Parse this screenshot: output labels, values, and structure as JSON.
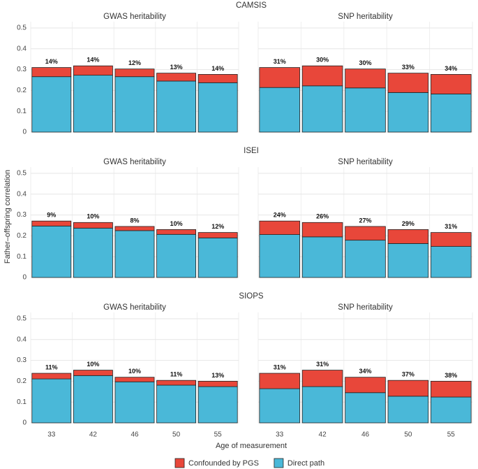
{
  "ylabel": "Father–offspring correlation",
  "xlabel": "Age of measurement",
  "chart_data": [
    {
      "type": "bar",
      "stacked": true,
      "section": "CAMSIS",
      "title": "GWAS heritability",
      "series": [
        {
          "name": "Direct path",
          "color": "#4ab8d8",
          "values": [
            0.266,
            0.273,
            0.266,
            0.245,
            0.237
          ]
        },
        {
          "name": "Confounded by PGS",
          "color": "#e8473a",
          "values": [
            0.044,
            0.045,
            0.037,
            0.038,
            0.04
          ]
        }
      ],
      "annotations": [
        "14%",
        "14%",
        "12%",
        "13%",
        "14%"
      ],
      "ylim": [
        0,
        0.53
      ],
      "yticks": [
        0,
        0.1,
        0.2,
        0.3,
        0.4,
        0.5
      ],
      "grid": true
    },
    {
      "type": "bar",
      "stacked": true,
      "title": "SNP heritability",
      "series": [
        {
          "values": [
            0.214,
            0.222,
            0.212,
            0.19,
            0.183
          ]
        },
        {
          "values": [
            0.096,
            0.096,
            0.091,
            0.093,
            0.094
          ]
        }
      ],
      "annotations": [
        "31%",
        "30%",
        "30%",
        "33%",
        "34%"
      ],
      "ylim": [
        0,
        0.53
      ],
      "yticks": [
        0,
        0.1,
        0.2,
        0.3,
        0.4,
        0.5
      ],
      "grid": true
    },
    {
      "type": "bar",
      "stacked": true,
      "section": "ISEI",
      "title": "GWAS heritability",
      "series": [
        {
          "values": [
            0.247,
            0.237,
            0.225,
            0.207,
            0.19
          ]
        },
        {
          "values": [
            0.024,
            0.027,
            0.02,
            0.023,
            0.026
          ]
        }
      ],
      "annotations": [
        "9%",
        "10%",
        "8%",
        "10%",
        "12%"
      ],
      "ylim": [
        0,
        0.53
      ],
      "yticks": [
        0,
        0.1,
        0.2,
        0.3,
        0.4,
        0.5
      ],
      "grid": true
    },
    {
      "type": "bar",
      "stacked": true,
      "title": "SNP heritability",
      "series": [
        {
          "values": [
            0.206,
            0.195,
            0.179,
            0.163,
            0.149
          ]
        },
        {
          "values": [
            0.065,
            0.069,
            0.066,
            0.067,
            0.067
          ]
        }
      ],
      "annotations": [
        "24%",
        "26%",
        "27%",
        "29%",
        "31%"
      ],
      "ylim": [
        0,
        0.53
      ],
      "yticks": [
        0,
        0.1,
        0.2,
        0.3,
        0.4,
        0.5
      ],
      "grid": true
    },
    {
      "type": "bar",
      "stacked": true,
      "section": "SIOPS",
      "title": "GWAS heritability",
      "categories": [
        "33",
        "42",
        "46",
        "50",
        "55"
      ],
      "series": [
        {
          "values": [
            0.211,
            0.227,
            0.197,
            0.181,
            0.174
          ]
        },
        {
          "values": [
            0.027,
            0.026,
            0.022,
            0.023,
            0.026
          ]
        }
      ],
      "annotations": [
        "11%",
        "10%",
        "10%",
        "11%",
        "13%"
      ],
      "ylim": [
        0,
        0.53
      ],
      "yticks": [
        0,
        0.1,
        0.2,
        0.3,
        0.4,
        0.5
      ],
      "grid": true
    },
    {
      "type": "bar",
      "stacked": true,
      "title": "SNP heritability",
      "categories": [
        "33",
        "42",
        "46",
        "50",
        "55"
      ],
      "series": [
        {
          "values": [
            0.164,
            0.174,
            0.145,
            0.128,
            0.124
          ]
        },
        {
          "values": [
            0.074,
            0.079,
            0.074,
            0.076,
            0.076
          ]
        }
      ],
      "annotations": [
        "31%",
        "31%",
        "34%",
        "37%",
        "38%"
      ],
      "ylim": [
        0,
        0.53
      ],
      "yticks": [
        0,
        0.1,
        0.2,
        0.3,
        0.4,
        0.5
      ],
      "grid": true
    }
  ]
}
